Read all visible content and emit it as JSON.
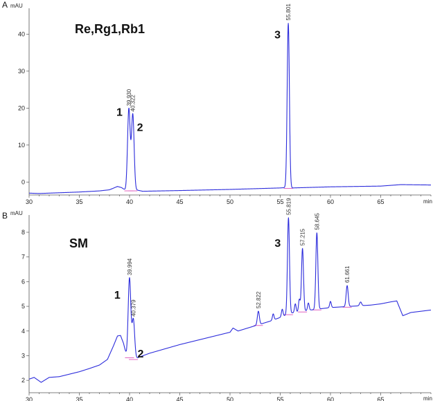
{
  "chart_data": [
    {
      "type": "line",
      "panel_label": "A",
      "title": "Re,Rg1,Rb1",
      "y_unit": "mAU",
      "x_unit": "min",
      "xlim": [
        30,
        70
      ],
      "ylim": [
        -3.5,
        47
      ],
      "x_ticks": [
        30,
        35,
        40,
        45,
        50,
        55,
        60,
        65
      ],
      "x_tick_labels": [
        "30",
        "35",
        "40",
        "45",
        "50",
        "55",
        "60",
        "65"
      ],
      "y_ticks": [
        0,
        10,
        20,
        30,
        40
      ],
      "y_tick_labels": [
        "0",
        "10",
        "20",
        "30",
        "40"
      ],
      "baseline": {
        "x": [
          30,
          31,
          33,
          35,
          37,
          38,
          38.8,
          39.2,
          39.6,
          40.8,
          41.3,
          45,
          50,
          55,
          55.5,
          56.2,
          60,
          65,
          67,
          70
        ],
        "y": [
          -3.0,
          -3.1,
          -2.9,
          -2.7,
          -2.4,
          -2.1,
          -1.2,
          -1.5,
          -2.2,
          -2.2,
          -2.5,
          -2.3,
          -2.0,
          -1.6,
          -1.5,
          -1.6,
          -1.3,
          -1.1,
          -0.7,
          -0.8
        ]
      },
      "peaks": [
        {
          "rt": 39.93,
          "height": 22.0,
          "width": 0.13,
          "rt_label": "39.930",
          "number": "1"
        },
        {
          "rt": 40.322,
          "height": 20.5,
          "width": 0.13,
          "rt_label": "40.322",
          "number": "2"
        },
        {
          "rt": 55.801,
          "height": 44.5,
          "width": 0.11,
          "rt_label": "55.801",
          "number": "3"
        }
      ]
    },
    {
      "type": "line",
      "panel_label": "B",
      "title": "SM",
      "y_unit": "mAU",
      "x_unit": "min",
      "xlim": [
        30,
        70
      ],
      "ylim": [
        1.5,
        8.7
      ],
      "x_ticks": [
        30,
        35,
        40,
        45,
        50,
        55,
        60,
        65
      ],
      "x_tick_labels": [
        "30",
        "35",
        "40",
        "45",
        "50",
        "55",
        "60",
        "65"
      ],
      "y_ticks": [
        2,
        3,
        4,
        5,
        6,
        7,
        8
      ],
      "y_tick_labels": [
        "2",
        "3",
        "4",
        "5",
        "6",
        "7",
        "8"
      ],
      "baseline": {
        "x": [
          30,
          30.5,
          31.2,
          32,
          33,
          34,
          35,
          36,
          37,
          37.8,
          38.4,
          38.8,
          39.1,
          39.4,
          39.7,
          40.5,
          41,
          42,
          45,
          48,
          50,
          50.3,
          50.8,
          52,
          54,
          55,
          56,
          58,
          60,
          62,
          64,
          65,
          66,
          66.6,
          67.2,
          68,
          70
        ],
        "y": [
          2.05,
          2.12,
          1.92,
          2.12,
          2.15,
          2.25,
          2.35,
          2.48,
          2.62,
          2.85,
          3.4,
          3.8,
          3.82,
          3.5,
          3.0,
          2.85,
          2.95,
          3.1,
          3.45,
          3.75,
          3.95,
          4.12,
          4.0,
          4.15,
          4.4,
          4.55,
          4.72,
          4.85,
          4.95,
          5.0,
          5.05,
          5.1,
          5.18,
          5.22,
          4.62,
          4.75,
          4.85
        ]
      },
      "peaks": [
        {
          "rt": 39.994,
          "height": 3.2,
          "width": 0.13,
          "rt_label": "39.994",
          "number": "1"
        },
        {
          "rt": 40.379,
          "height": 1.6,
          "width": 0.13,
          "rt_label": "40.379",
          "number": "2"
        },
        {
          "rt": 52.822,
          "height": 0.55,
          "width": 0.1,
          "rt_label": "52.822",
          "number": ""
        },
        {
          "rt": 54.3,
          "height": 0.25,
          "width": 0.08,
          "rt_label": "",
          "number": ""
        },
        {
          "rt": 55.2,
          "height": 0.3,
          "width": 0.08,
          "rt_label": "",
          "number": ""
        },
        {
          "rt": 55.819,
          "height": 3.9,
          "width": 0.1,
          "rt_label": "55.819",
          "number": "3"
        },
        {
          "rt": 56.5,
          "height": 0.35,
          "width": 0.08,
          "rt_label": "",
          "number": ""
        },
        {
          "rt": 56.9,
          "height": 0.5,
          "width": 0.08,
          "rt_label": "",
          "number": ""
        },
        {
          "rt": 57.215,
          "height": 2.55,
          "width": 0.1,
          "rt_label": "57.215",
          "number": ""
        },
        {
          "rt": 57.8,
          "height": 0.3,
          "width": 0.08,
          "rt_label": "",
          "number": ""
        },
        {
          "rt": 58.645,
          "height": 3.1,
          "width": 0.1,
          "rt_label": "58.645",
          "number": ""
        },
        {
          "rt": 60.0,
          "height": 0.25,
          "width": 0.08,
          "rt_label": "",
          "number": ""
        },
        {
          "rt": 61.661,
          "height": 0.85,
          "width": 0.1,
          "rt_label": "61.661",
          "number": ""
        },
        {
          "rt": 63.0,
          "height": 0.15,
          "width": 0.1,
          "rt_label": "",
          "number": ""
        }
      ]
    }
  ]
}
